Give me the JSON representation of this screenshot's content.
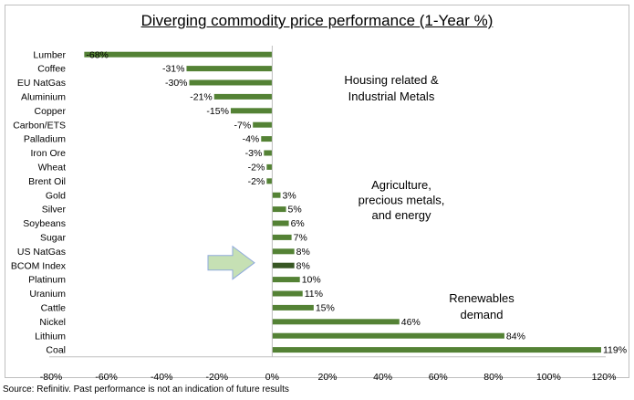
{
  "chart_data": {
    "type": "bar",
    "orientation": "horizontal",
    "title": "Diverging commodity price performance (1-Year %)",
    "categories": [
      "Lumber",
      "Coffee",
      "EU NatGas",
      "Aluminium",
      "Copper",
      "Carbon/ETS",
      "Palladium",
      "Iron Ore",
      "Wheat",
      "Brent Oil",
      "Gold",
      "Silver",
      "Soybeans",
      "Sugar",
      "US NatGas",
      "BCOM Index",
      "Platinum",
      "Uranium",
      "Cattle",
      "Nickel",
      "Lithium",
      "Coal"
    ],
    "values": [
      -68,
      -31,
      -30,
      -21,
      -15,
      -7,
      -4,
      -3,
      -2,
      -2,
      3,
      5,
      6,
      7,
      8,
      8,
      10,
      11,
      15,
      46,
      84,
      119
    ],
    "data_labels": [
      "-68%",
      "-31%",
      "-30%",
      "-21%",
      "-15%",
      "-7%",
      "-4%",
      "-3%",
      "-2%",
      "-2%",
      "3%",
      "5%",
      "6%",
      "7%",
      "8%",
      "8%",
      "10%",
      "11%",
      "15%",
      "46%",
      "84%",
      "119%"
    ],
    "highlight_category": "BCOM Index",
    "xlim": [
      -80,
      120
    ],
    "xticks": [
      -80,
      -60,
      -40,
      -20,
      0,
      20,
      40,
      60,
      80,
      100,
      120
    ],
    "xtick_labels": [
      "-80%",
      "-60%",
      "-40%",
      "-20%",
      "0%",
      "20%",
      "40%",
      "60%",
      "80%",
      "100%",
      "120%"
    ],
    "grid": false,
    "colors": {
      "bar": "#548235",
      "highlight": "#375623",
      "arrow_fill": "#c6e0b4",
      "arrow_stroke": "#8faadc"
    },
    "annotations": [
      {
        "lines": [
          "Housing related &",
          "Industrial Metals"
        ]
      },
      {
        "lines": [
          "Agriculture,",
          "precious metals,",
          "and energy"
        ]
      },
      {
        "lines": [
          "Renewables",
          "demand"
        ]
      }
    ]
  },
  "source": "Source: Refinitiv. Past performance is not an indication of future results"
}
